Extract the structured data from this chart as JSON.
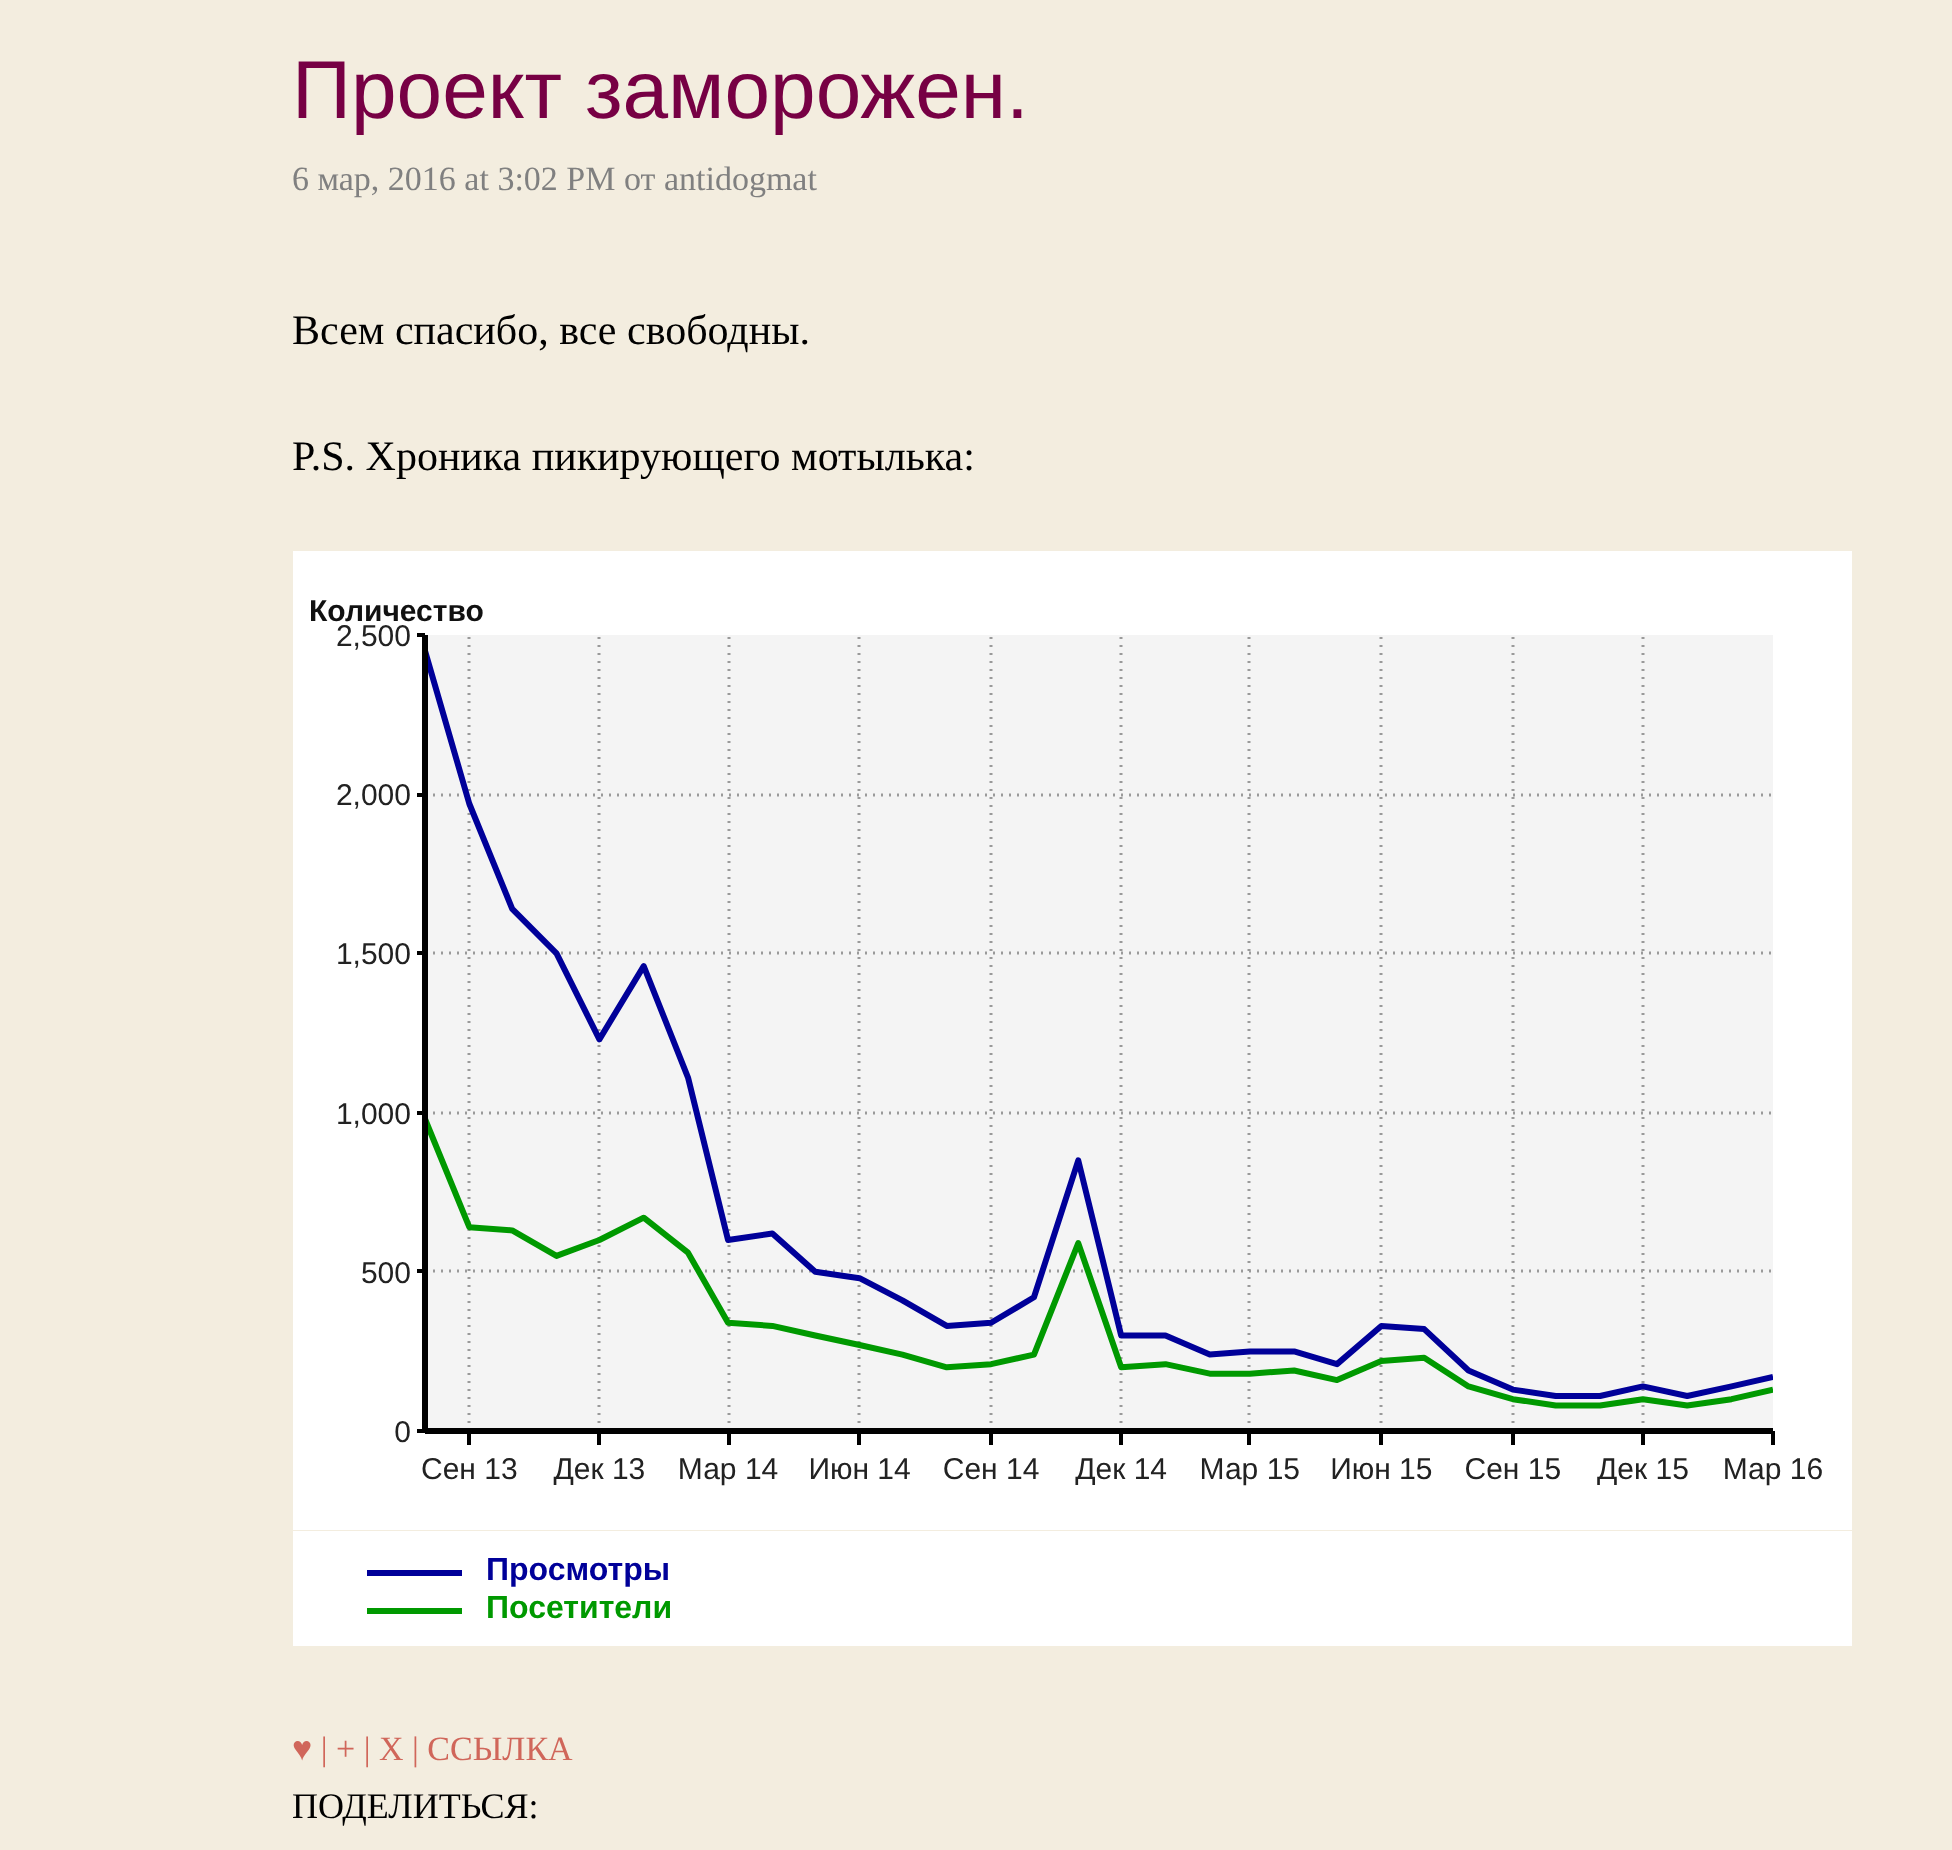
{
  "chart_data": {
    "type": "line",
    "title": "Проект заморожен.",
    "subtitle": "6 мар, 2016 at 3:02 PM от antidogmat",
    "annotations": [
      "Всем спасибо, все свободны.",
      "P.S. Хроника пикирующего мотылька:",
      "♥ | + | X | ССЫЛКА",
      "ПОДЕЛИТЬСЯ:"
    ],
    "ylabel": "Количество",
    "x": [
      "2013-08",
      "2013-09",
      "2013-10",
      "2013-11",
      "2013-12",
      "2014-01",
      "2014-02",
      "2014-03",
      "2014-04",
      "2014-05",
      "2014-06",
      "2014-07",
      "2014-08",
      "2014-09",
      "2014-10",
      "2014-11",
      "2014-12",
      "2015-01",
      "2015-02",
      "2015-03",
      "2015-04",
      "2015-05",
      "2015-06",
      "2015-07",
      "2015-08",
      "2015-09",
      "2015-10",
      "2015-11",
      "2015-12",
      "2016-01",
      "2016-02",
      "2016-03"
    ],
    "series": [
      {
        "name": "Просмотры",
        "color": "#000099",
        "values": [
          2450,
          1970,
          1640,
          1500,
          1230,
          1460,
          1110,
          600,
          620,
          500,
          480,
          410,
          330,
          340,
          420,
          850,
          300,
          300,
          240,
          250,
          250,
          210,
          330,
          320,
          190,
          130,
          110,
          110,
          140,
          110,
          140,
          170
        ]
      },
      {
        "name": "Посетители",
        "color": "#009900",
        "values": [
          980,
          640,
          630,
          550,
          600,
          670,
          560,
          340,
          330,
          300,
          270,
          240,
          200,
          210,
          240,
          590,
          200,
          210,
          180,
          180,
          190,
          160,
          220,
          230,
          140,
          100,
          80,
          80,
          100,
          80,
          100,
          130
        ]
      }
    ],
    "xlim": [
      "2013-08",
      "2016-03"
    ],
    "xticks": [
      {
        "value": "2013-09",
        "label": "Сен 13"
      },
      {
        "value": "2013-12",
        "label": "Дек 13"
      },
      {
        "value": "2014-03",
        "label": "Мар 14"
      },
      {
        "value": "2014-06",
        "label": "Июн 14"
      },
      {
        "value": "2014-09",
        "label": "Сен 14"
      },
      {
        "value": "2014-12",
        "label": "Дек 14"
      },
      {
        "value": "2015-03",
        "label": "Мар 15"
      },
      {
        "value": "2015-06",
        "label": "Июн 15"
      },
      {
        "value": "2015-09",
        "label": "Сен 15"
      },
      {
        "value": "2015-12",
        "label": "Дек 15"
      },
      {
        "value": "2016-03",
        "label": "Мар 16"
      }
    ],
    "ylim": [
      0,
      2500
    ],
    "yticks": [
      0,
      500,
      {
        "value": 1000,
        "label": "1,000"
      },
      {
        "value": 1500,
        "label": "1,500"
      },
      {
        "value": 2000,
        "label": "2,000"
      },
      {
        "value": 2500,
        "label": "2,500"
      }
    ],
    "grid": true,
    "legend": "bottom",
    "marker": "none",
    "line_style": "solid"
  }
}
